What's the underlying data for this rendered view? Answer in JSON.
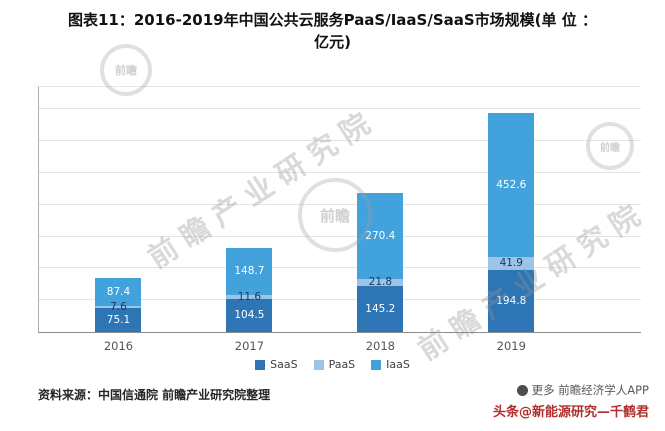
{
  "title": {
    "line1": "图表11：2016-2019年中国公共云服务PaaS/IaaS/SaaS市场规模(单 位 ：",
    "line2": "亿元)"
  },
  "chart_data": {
    "type": "bar",
    "stacked": true,
    "title": "2016-2019年中国公共云服务PaaS/IaaS/SaaS市场规模",
    "unit": "亿元",
    "categories": [
      "2016",
      "2017",
      "2018",
      "2019"
    ],
    "series": [
      {
        "name": "SaaS",
        "color": "#2E75B6",
        "label_color": "#ffffff",
        "values": [
          75.1,
          104.5,
          145.2,
          194.8
        ]
      },
      {
        "name": "PaaS",
        "color": "#9DC3E6",
        "label_color": "#17375E",
        "values": [
          7.6,
          11.6,
          21.8,
          41.9
        ]
      },
      {
        "name": "IaaS",
        "color": "#41A2DC",
        "label_color": "#ffffff",
        "values": [
          87.4,
          148.7,
          270.4,
          452.6
        ]
      }
    ],
    "totals": [
      170.1,
      264.8,
      437.4,
      689.3
    ],
    "ylim": [
      0,
      770
    ],
    "gridline_step": 100,
    "grid": true,
    "legend_position": "bottom",
    "y_tick_labels_visible": false
  },
  "watermark": {
    "text": "前瞻产业研究院",
    "logo_text": "前瞻"
  },
  "footer": {
    "source": "资料来源：中国信通院 前瞻产业研究院整理",
    "app_note": "更多 前瞻经济学人APP",
    "byline": "头条@新能源研究—千鹤君"
  }
}
